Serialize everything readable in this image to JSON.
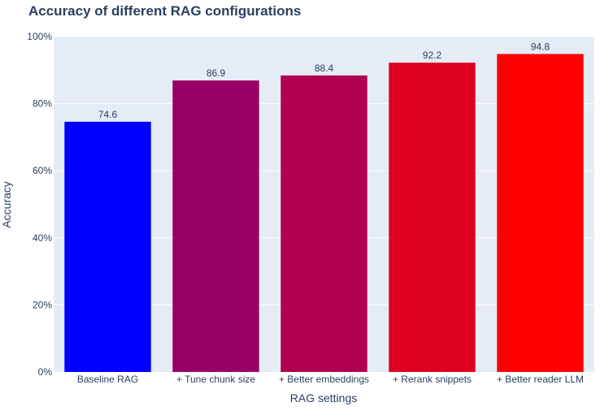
{
  "chart_data": {
    "type": "bar",
    "title": "Accuracy of different RAG configurations",
    "xlabel": "RAG settings",
    "ylabel": "Accuracy",
    "categories": [
      "Baseline RAG",
      "+ Tune chunk size",
      "+ Better embeddings",
      "+ Rerank snippets",
      "+ Better reader LLM"
    ],
    "values": [
      74.6,
      86.9,
      88.4,
      92.2,
      94.8
    ],
    "value_labels": [
      "74.6",
      "86.9",
      "88.4",
      "92.2",
      "94.8"
    ],
    "bar_colors": [
      "#0000ff",
      "#990066",
      "#b0004f",
      "#de001f",
      "#ff0000"
    ],
    "ylim": [
      0,
      100
    ],
    "yticks": [
      0,
      20,
      40,
      60,
      80,
      100
    ],
    "ytick_labels": [
      "0%",
      "20%",
      "40%",
      "60%",
      "80%",
      "100%"
    ],
    "grid": true,
    "plot_background": "#e5ecf6",
    "text_color": "#2a3f5f"
  }
}
